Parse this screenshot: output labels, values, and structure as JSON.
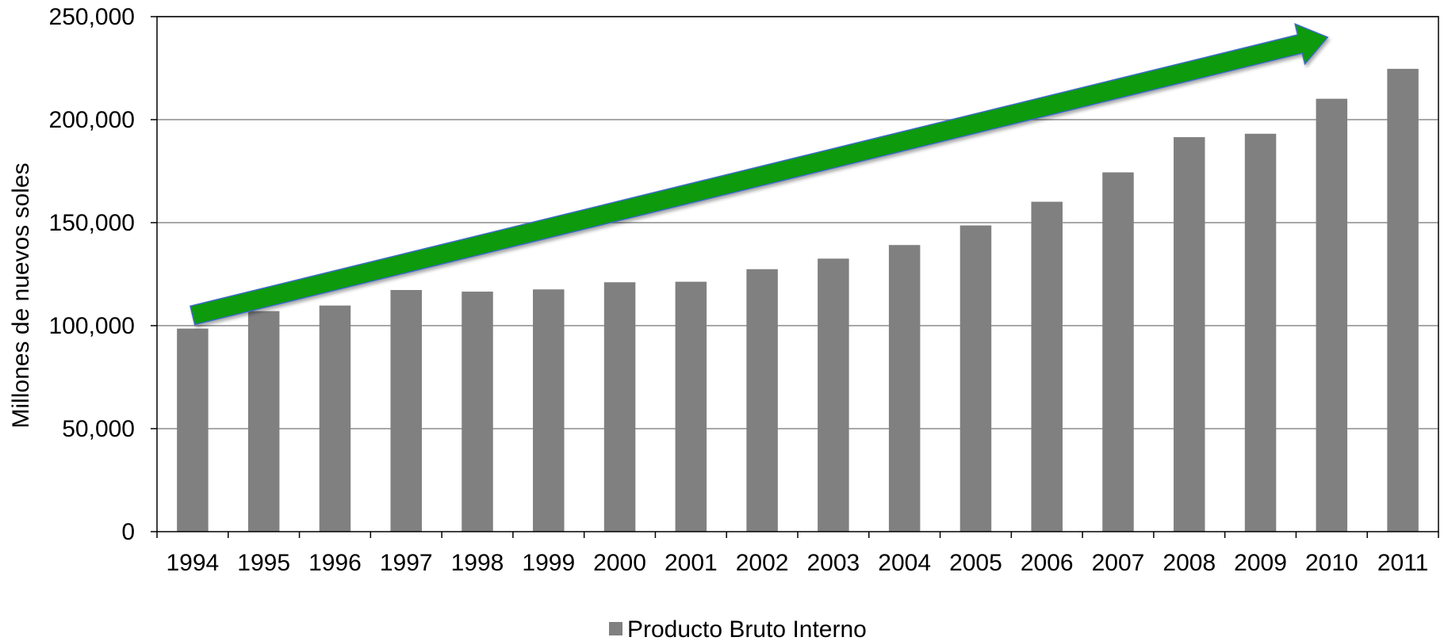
{
  "chart_data": {
    "type": "bar",
    "title": "",
    "xlabel": "",
    "ylabel": "Millones de  nuevos soles",
    "categories": [
      "1994",
      "1995",
      "1996",
      "1997",
      "1998",
      "1999",
      "2000",
      "2001",
      "2002",
      "2003",
      "2004",
      "2005",
      "2006",
      "2007",
      "2008",
      "2009",
      "2010",
      "2011"
    ],
    "series": [
      {
        "name": "Producto Bruto Interno",
        "color": "#808080",
        "values": [
          98577,
          107064,
          109760,
          117294,
          116522,
          117587,
          121057,
          121317,
          127407,
          132545,
          139141,
          148640,
          160145,
          174407,
          191505,
          193155,
          210143,
          224669
        ]
      }
    ],
    "ylim": [
      0,
      250000
    ],
    "yticks": [
      0,
      50000,
      100000,
      150000,
      200000,
      250000
    ],
    "ytick_labels": [
      "0",
      "50,000",
      "100,000",
      "150,000",
      "200,000",
      "250,000"
    ],
    "grid": true,
    "legend_position": "bottom",
    "annotation": {
      "type": "trend-arrow",
      "color": "#0a9a0a",
      "from_category": "1994",
      "to_category": "2010",
      "from_value": 105000,
      "to_value": 240000
    }
  }
}
